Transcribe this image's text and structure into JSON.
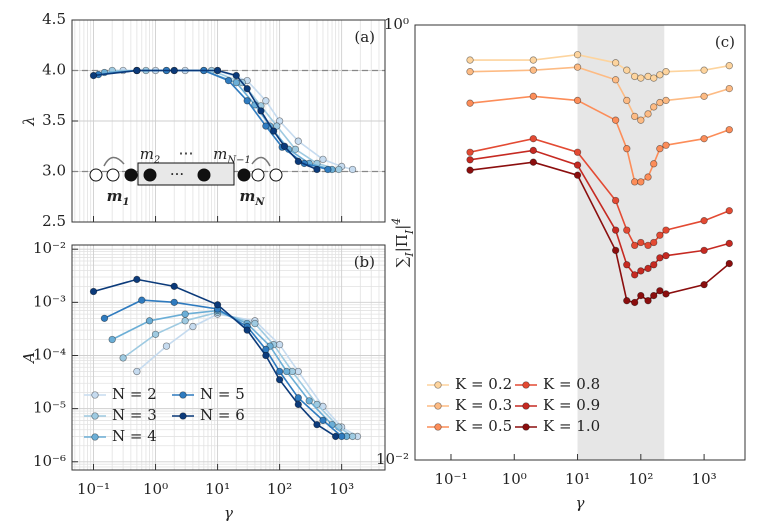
{
  "chart_data": [
    {
      "type": "line",
      "annotation": "(a)",
      "xscale": "log",
      "yscale": "linear",
      "xlim": [
        0.045,
        5000
      ],
      "ylim": [
        2.5,
        4.5
      ],
      "xticks": [
        0.1,
        1,
        10,
        100,
        1000
      ],
      "xtick_labels": false,
      "yticks": [
        2.5,
        {
          "value": 3,
          "label": "3.0"
        },
        3.5,
        {
          "value": 4,
          "label": "4.0"
        },
        4.5
      ],
      "ylabel": [
        [
          "λ",
          ""
        ]
      ],
      "grid": true,
      "reference_lines": [
        4,
        3
      ],
      "series": [
        {
          "name": "N = 2",
          "color": "#c6dbef",
          "x": [
            0.3,
            1,
            3,
            10,
            30,
            60,
            100,
            200,
            500,
            1000,
            1500
          ],
          "values": [
            4.0,
            4.0,
            4.0,
            4.0,
            3.9,
            3.7,
            3.5,
            3.3,
            3.12,
            3.05,
            3.02
          ]
        },
        {
          "name": "N = 3",
          "color": "#9ecae1",
          "x": [
            0.2,
            0.7,
            2,
            8,
            25,
            50,
            90,
            180,
            400,
            900
          ],
          "values": [
            4.0,
            4.0,
            4.0,
            4.0,
            3.88,
            3.65,
            3.45,
            3.22,
            3.08,
            3.02
          ]
        },
        {
          "name": "N = 4",
          "color": "#6baed6",
          "x": [
            0.15,
            0.5,
            1.5,
            6,
            20,
            40,
            70,
            140,
            300,
            700
          ],
          "values": [
            3.98,
            4.0,
            4.0,
            4.0,
            3.88,
            3.66,
            3.45,
            3.22,
            3.08,
            3.02
          ]
        },
        {
          "name": "N = 5",
          "color": "#2f7bbf",
          "x": [
            0.12,
            0.5,
            1.5,
            6,
            15,
            30,
            60,
            110,
            250,
            600
          ],
          "values": [
            3.96,
            4.0,
            4.0,
            4.0,
            3.9,
            3.7,
            3.45,
            3.24,
            3.08,
            3.02
          ]
        },
        {
          "name": "N = 6",
          "color": "#0b3a7a",
          "x": [
            0.1,
            0.5,
            2,
            10,
            20,
            30,
            50,
            80,
            120,
            200,
            400
          ],
          "values": [
            3.95,
            4.0,
            4.0,
            4.0,
            3.95,
            3.82,
            3.6,
            3.4,
            3.25,
            3.1,
            3.02
          ]
        }
      ],
      "inset": [
        {
          "text": "m",
          "sub": "2",
          "bold": false
        },
        {
          "text": "⋯",
          "sub": "",
          "bold": false
        },
        {
          "text": "m",
          "sub": "N−1",
          "bold": false
        },
        {
          "text": "m",
          "sub": "1",
          "bold": true
        },
        {
          "text": "m",
          "sub": "N",
          "bold": true
        }
      ]
    },
    {
      "type": "line",
      "annotation": "(b)",
      "xscale": "log",
      "yscale": "log",
      "xlim": [
        0.045,
        5000
      ],
      "ylim": [
        7e-07,
        0.012
      ],
      "xticks": [
        {
          "value": 0.1,
          "label": "10⁻¹"
        },
        {
          "value": 1,
          "label": "10⁰"
        },
        {
          "value": 10,
          "label": "10¹"
        },
        {
          "value": 100,
          "label": "10²"
        },
        {
          "value": 1000,
          "label": "10³"
        }
      ],
      "yticks": [
        {
          "value": 1e-06,
          "label": "10⁻⁶"
        },
        {
          "value": 1e-05,
          "label": "10⁻⁵"
        },
        {
          "value": 0.0001,
          "label": "10⁻⁴"
        },
        {
          "value": 0.001,
          "label": "10⁻³"
        },
        {
          "value": 0.01,
          "label": "10⁻²"
        }
      ],
      "xlabel": "γ",
      "ylabel": [
        [
          "A",
          ""
        ]
      ],
      "grid": true,
      "legend": "lower left",
      "legend_columns": 2,
      "series": [
        {
          "name": "N = 2",
          "color": "#c6dbef",
          "x": [
            0.5,
            1.5,
            4,
            10,
            40,
            100,
            200,
            500,
            1000,
            1800
          ],
          "values": [
            5e-05,
            0.00015,
            0.00035,
            0.0006,
            0.00045,
            0.00016,
            5e-05,
            1.1e-05,
            4.5e-06,
            3e-06
          ]
        },
        {
          "name": "N = 3",
          "color": "#9ecae1",
          "x": [
            0.3,
            1,
            3,
            10,
            40,
            80,
            160,
            400,
            900,
            1500
          ],
          "values": [
            9e-05,
            0.00025,
            0.00045,
            0.00065,
            0.0004,
            0.00016,
            5e-05,
            1.2e-05,
            4.5e-06,
            3e-06
          ]
        },
        {
          "name": "N = 4",
          "color": "#6baed6",
          "x": [
            0.2,
            0.8,
            3,
            10,
            30,
            70,
            130,
            300,
            700,
            1200
          ],
          "values": [
            0.0002,
            0.00045,
            0.0006,
            0.0007,
            0.0004,
            0.00015,
            5e-05,
            1.4e-05,
            5e-06,
            3e-06
          ]
        },
        {
          "name": "N = 5",
          "color": "#2f7bbf",
          "x": [
            0.15,
            0.6,
            2,
            10,
            30,
            60,
            100,
            200,
            500,
            1000
          ],
          "values": [
            0.0005,
            0.0011,
            0.001,
            0.00075,
            0.00035,
            0.00013,
            5e-05,
            1.6e-05,
            6e-06,
            3e-06
          ]
        },
        {
          "name": "N = 6",
          "color": "#0b3a7a",
          "x": [
            0.1,
            0.5,
            2,
            10,
            30,
            60,
            100,
            200,
            400,
            800
          ],
          "values": [
            0.0016,
            0.0027,
            0.002,
            0.0009,
            0.0003,
            0.0001,
            3.5e-05,
            1.2e-05,
            5e-06,
            3e-06
          ]
        }
      ]
    },
    {
      "type": "line",
      "annotation": "(c)",
      "xscale": "log",
      "yscale": "log",
      "xlim": [
        0.027,
        4430
      ],
      "ylim": [
        0.01,
        1
      ],
      "xticks": [
        {
          "value": 0.1,
          "label": "10⁻¹"
        },
        {
          "value": 1,
          "label": "10⁰"
        },
        {
          "value": 10,
          "label": "10¹"
        },
        {
          "value": 100,
          "label": "10²"
        },
        {
          "value": 1000,
          "label": "10³"
        }
      ],
      "yticks": [
        {
          "value": 0.01,
          "label": "10⁻²"
        },
        {
          "value": 1,
          "label": "10⁰"
        }
      ],
      "xlabel": "γ",
      "ylabel": [
        [
          "∑",
          ""
        ],
        [
          "I",
          "sub"
        ],
        [
          "|Π",
          ""
        ],
        [
          "I",
          "sub"
        ],
        [
          "|",
          ""
        ],
        [
          "4",
          "sup"
        ]
      ],
      "grid": false,
      "shaded_xrange": [
        10,
        235
      ],
      "legend": "lower left",
      "legend_columns": 2,
      "x": [
        0.2,
        2,
        10,
        40,
        60,
        80,
        100,
        130,
        160,
        200,
        250,
        1000,
        2500
      ],
      "series": [
        {
          "name": "K = 0.2",
          "color": "#fdd49e",
          "values": [
            0.69,
            0.69,
            0.73,
            0.67,
            0.62,
            0.58,
            0.57,
            0.58,
            0.57,
            0.59,
            0.61,
            0.62,
            0.65
          ]
        },
        {
          "name": "K = 0.3",
          "color": "#fdbb84",
          "values": [
            0.61,
            0.62,
            0.64,
            0.56,
            0.45,
            0.38,
            0.365,
            0.39,
            0.42,
            0.44,
            0.45,
            0.47,
            0.51
          ]
        },
        {
          "name": "K = 0.5",
          "color": "#fc8d59",
          "values": [
            0.437,
            0.47,
            0.45,
            0.365,
            0.27,
            0.19,
            0.19,
            0.2,
            0.23,
            0.27,
            0.28,
            0.3,
            0.33
          ]
        },
        {
          "name": "K = 0.8",
          "color": "#e34a33",
          "values": [
            0.26,
            0.3,
            0.26,
            0.156,
            0.114,
            0.097,
            0.1,
            0.097,
            0.1,
            0.108,
            0.114,
            0.126,
            0.14
          ]
        },
        {
          "name": "K = 0.9",
          "color": "#c62a22",
          "values": [
            0.24,
            0.265,
            0.227,
            0.114,
            0.079,
            0.071,
            0.074,
            0.076,
            0.079,
            0.085,
            0.087,
            0.092,
            0.099
          ]
        },
        {
          "name": "K = 1.0",
          "color": "#8b0e0e",
          "values": [
            0.215,
            0.234,
            0.204,
            0.092,
            0.054,
            0.053,
            0.057,
            0.054,
            0.057,
            0.06,
            0.058,
            0.064,
            0.08
          ]
        }
      ]
    }
  ]
}
